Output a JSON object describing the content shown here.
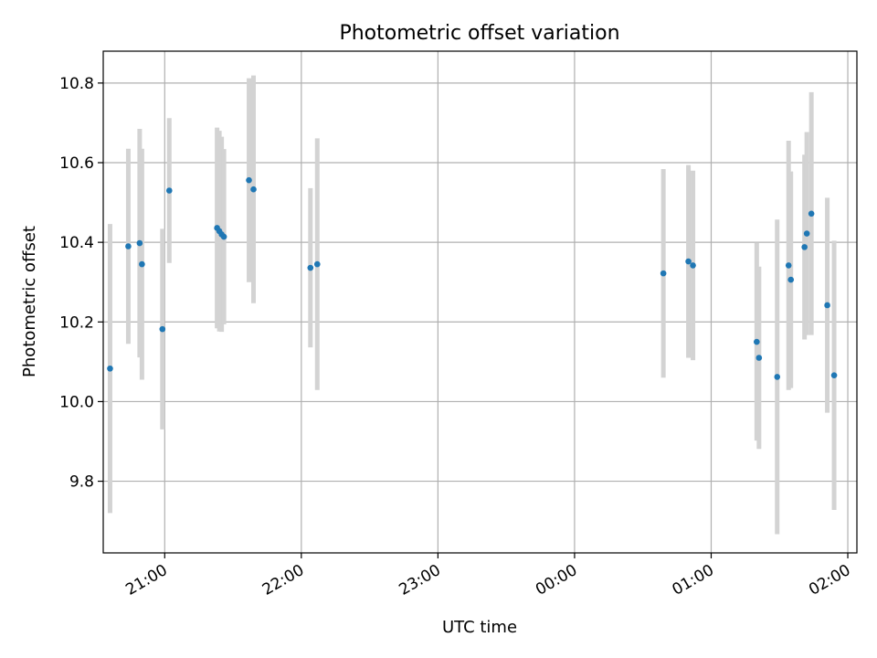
{
  "chart_data": {
    "type": "scatter",
    "title": "Photometric offset variation",
    "xlabel": "UTC time",
    "ylabel": "Photometric offset",
    "x_axis": {
      "kind": "time",
      "range": [
        "20:33",
        "02:04"
      ],
      "ticks": [
        "21:00",
        "22:00",
        "23:00",
        "00:00",
        "01:00",
        "02:00"
      ]
    },
    "y_axis": {
      "range": [
        9.62,
        10.88
      ],
      "ticks": [
        9.8,
        10.0,
        10.2,
        10.4,
        10.6,
        10.8
      ]
    },
    "grid": true,
    "colors": {
      "point": "#1f77b4",
      "errorbar": "#d3d3d3",
      "grid": "#b0b0b0"
    },
    "series": [
      {
        "points": [
          {
            "time": "20:36",
            "y": 10.083,
            "yerr": 0.363
          },
          {
            "time": "20:44",
            "y": 10.39,
            "yerr": 0.245
          },
          {
            "time": "20:49",
            "y": 10.398,
            "yerr": 0.287
          },
          {
            "time": "20:50",
            "y": 10.345,
            "yerr": 0.29
          },
          {
            "time": "20:59",
            "y": 10.182,
            "yerr": 0.252
          },
          {
            "time": "21:02",
            "y": 10.53,
            "yerr": 0.182
          },
          {
            "time": "21:23",
            "y": 10.436,
            "yerr": 0.252
          },
          {
            "time": "21:24",
            "y": 10.428,
            "yerr": 0.252
          },
          {
            "time": "21:25",
            "y": 10.42,
            "yerr": 0.245
          },
          {
            "time": "21:26",
            "y": 10.414,
            "yerr": 0.22
          },
          {
            "time": "21:37",
            "y": 10.556,
            "yerr": 0.256
          },
          {
            "time": "21:39",
            "y": 10.533,
            "yerr": 0.286
          },
          {
            "time": "22:04",
            "y": 10.336,
            "yerr": 0.2
          },
          {
            "time": "22:07",
            "y": 10.345,
            "yerr": 0.316
          },
          {
            "time": "00:39",
            "y": 10.322,
            "yerr": 0.262
          },
          {
            "time": "00:50",
            "y": 10.352,
            "yerr": 0.242
          },
          {
            "time": "00:52",
            "y": 10.342,
            "yerr": 0.238
          },
          {
            "time": "01:20",
            "y": 10.15,
            "yerr": 0.248
          },
          {
            "time": "01:21",
            "y": 10.11,
            "yerr": 0.229
          },
          {
            "time": "01:29",
            "y": 10.062,
            "yerr": 0.395
          },
          {
            "time": "01:34",
            "y": 10.342,
            "yerr": 0.313
          },
          {
            "time": "01:35",
            "y": 10.306,
            "yerr": 0.272
          },
          {
            "time": "01:41",
            "y": 10.388,
            "yerr": 0.232
          },
          {
            "time": "01:42",
            "y": 10.422,
            "yerr": 0.255
          },
          {
            "time": "01:44",
            "y": 10.472,
            "yerr": 0.305
          },
          {
            "time": "01:51",
            "y": 10.242,
            "yerr": 0.27
          },
          {
            "time": "01:54",
            "y": 10.066,
            "yerr": 0.338
          }
        ]
      }
    ]
  }
}
